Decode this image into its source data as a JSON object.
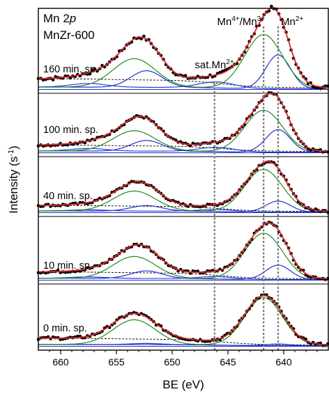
{
  "chart_data": {
    "type": "line",
    "title_line1": "Mn 2",
    "title_line1_italic": "p",
    "title_line2": "MnZr-600",
    "xlabel": "BE (eV)",
    "ylabel": "Intensity (s",
    "ylabel_sup": "-1",
    "ylabel_end": ")",
    "xlim": [
      662,
      636
    ],
    "x_ticks": [
      660,
      655,
      650,
      645,
      640
    ],
    "x_reversed": true,
    "y_ticks": "none",
    "reference_lines": [
      {
        "be": 646.2,
        "label": "sat.Mn",
        "sup": "2+"
      },
      {
        "be": 641.8,
        "label": "Mn",
        "sup": "4+",
        "mid": "/Mn",
        "sup2": "3+"
      },
      {
        "be": 640.5,
        "label": "Mn",
        "sup": "2+"
      }
    ],
    "colors": {
      "data": "#000000",
      "envelope": "#d62728",
      "mn43_component": "#1f8a1f",
      "mn2_component": "#1f2fd0",
      "satellite": "#1f2fd0",
      "background": "#000000",
      "ref_lines": "#777777"
    },
    "panels": [
      {
        "label": "160 min. sp.",
        "mn43_main": 0.72,
        "mn43_sat": 0.38,
        "mn2_main": 0.45,
        "mn2_sat": 0.22,
        "sat": 0.08
      },
      {
        "label": "100 min. sp.",
        "mn43_main": 0.78,
        "mn43_sat": 0.38,
        "mn2_main": 0.42,
        "mn2_sat": 0.2,
        "sat": 0.08
      },
      {
        "label": "40 min. sp.",
        "mn43_main": 0.85,
        "mn43_sat": 0.4,
        "mn2_main": 0.22,
        "mn2_sat": 0.11,
        "sat": 0.04
      },
      {
        "label": "10 min. sp.",
        "mn43_main": 0.8,
        "mn43_sat": 0.38,
        "mn2_main": 0.25,
        "mn2_sat": 0.13,
        "sat": 0.04
      },
      {
        "label": "0 min. sp.",
        "mn43_main": 0.85,
        "mn43_sat": 0.44,
        "mn2_main": 0.03,
        "mn2_sat": 0.02,
        "sat": 0.0
      }
    ]
  }
}
